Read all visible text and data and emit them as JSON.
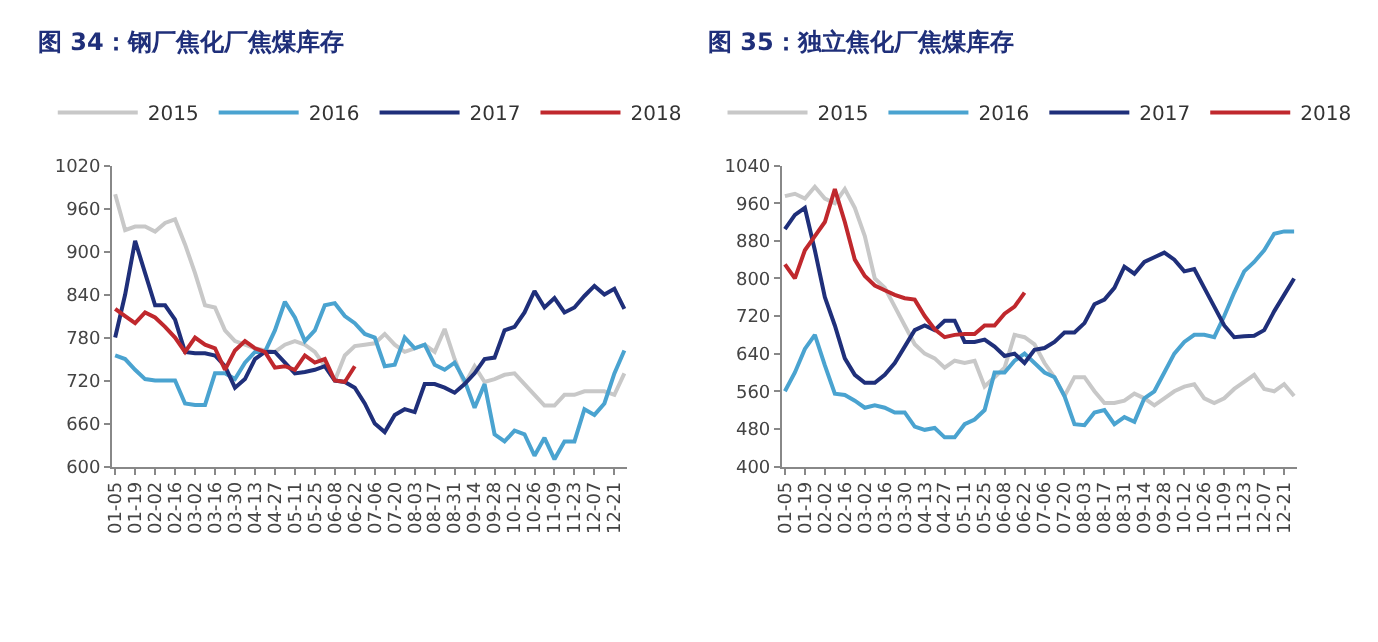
{
  "chart_data": [
    {
      "type": "line",
      "title": "图 34：钢厂焦化厂焦煤库存",
      "categories": [
        "01-05",
        null,
        "01-19",
        null,
        "02-02",
        null,
        "02-16",
        null,
        "03-02",
        null,
        "03-16",
        null,
        "03-30",
        null,
        "04-13",
        null,
        "04-27",
        null,
        "05-11",
        null,
        "05-25",
        null,
        "06-08",
        null,
        "06-22",
        null,
        "07-06",
        null,
        "07-20",
        null,
        "08-03",
        null,
        "08-17",
        null,
        "08-31",
        null,
        "09-14",
        null,
        "09-28",
        null,
        "10-12",
        null,
        "10-26",
        null,
        "11-09",
        null,
        "11-23",
        null,
        "12-07",
        null,
        "12-21",
        null
      ],
      "series": [
        {
          "name": "2015",
          "color": "#c8c8c8",
          "values": [
            980,
            930,
            935,
            935,
            928,
            940,
            945,
            910,
            870,
            825,
            822,
            790,
            775,
            770,
            765,
            762,
            760,
            770,
            775,
            770,
            760,
            740,
            720,
            755,
            768,
            770,
            772,
            785,
            770,
            760,
            765,
            770,
            760,
            792,
            750,
            715,
            740,
            718,
            722,
            728,
            730,
            715,
            700,
            685,
            685,
            700,
            700,
            705,
            705,
            705,
            700,
            730
          ]
        },
        {
          "name": "2016",
          "color": "#4aa3d0",
          "values": [
            755,
            750,
            735,
            722,
            720,
            720,
            720,
            688,
            686,
            686,
            730,
            730,
            722,
            745,
            760,
            760,
            790,
            830,
            808,
            775,
            790,
            825,
            828,
            810,
            800,
            785,
            780,
            740,
            742,
            780,
            765,
            770,
            742,
            735,
            745,
            720,
            682,
            715,
            645,
            635,
            650,
            645,
            615,
            640,
            610,
            635,
            635,
            680,
            672,
            688,
            730,
            762
          ]
        },
        {
          "name": "2017",
          "color": "#1f2f7a",
          "values": [
            780,
            840,
            915,
            870,
            825,
            825,
            805,
            760,
            758,
            758,
            755,
            740,
            710,
            722,
            750,
            760,
            760,
            745,
            730,
            732,
            735,
            740,
            720,
            718,
            710,
            688,
            660,
            648,
            672,
            680,
            676,
            715,
            715,
            710,
            703,
            715,
            730,
            750,
            752,
            790,
            795,
            815,
            845,
            822,
            835,
            815,
            822,
            838,
            852,
            840,
            848,
            820
          ]
        },
        {
          "name": "2018",
          "color": "#c0282d",
          "values": [
            820,
            810,
            800,
            815,
            808,
            795,
            780,
            760,
            780,
            770,
            765,
            735,
            762,
            775,
            765,
            760,
            738,
            740,
            735,
            755,
            745,
            750,
            720,
            718,
            740,
            null,
            null,
            null,
            null,
            null,
            null,
            null,
            null,
            null,
            null,
            null,
            null,
            null,
            null,
            null,
            null,
            null,
            null,
            null,
            null,
            null,
            null,
            null,
            null,
            null,
            null,
            null
          ]
        }
      ],
      "ylim": [
        600,
        1020
      ],
      "yticks": [
        600,
        660,
        720,
        780,
        840,
        900,
        960,
        1020
      ],
      "legend": "top",
      "marker": "none",
      "line_style": "solid"
    },
    {
      "type": "line",
      "title": "图 35：独立焦化厂焦煤库存",
      "categories": [
        "01-05",
        null,
        "01-19",
        null,
        "02-02",
        null,
        "02-16",
        null,
        "03-02",
        null,
        "03-16",
        null,
        "03-30",
        null,
        "04-13",
        null,
        "04-27",
        null,
        "05-11",
        null,
        "05-25",
        null,
        "06-08",
        null,
        "06-22",
        null,
        "07-06",
        null,
        "07-20",
        null,
        "08-03",
        null,
        "08-17",
        null,
        "08-31",
        null,
        "09-14",
        null,
        "09-28",
        null,
        "10-12",
        null,
        "10-26",
        null,
        "11-09",
        null,
        "11-23",
        null,
        "12-07",
        null,
        "12-21",
        null
      ],
      "series": [
        {
          "name": "2015",
          "color": "#c8c8c8",
          "values": [
            975,
            980,
            970,
            995,
            970,
            960,
            990,
            950,
            890,
            800,
            780,
            740,
            700,
            660,
            640,
            630,
            610,
            625,
            620,
            625,
            570,
            590,
            610,
            680,
            675,
            660,
            620,
            590,
            550,
            590,
            590,
            560,
            535,
            535,
            540,
            555,
            545,
            530,
            545,
            560,
            570,
            575,
            545,
            535,
            545,
            565,
            580,
            595,
            565,
            560,
            575,
            550
          ]
        },
        {
          "name": "2016",
          "color": "#4aa3d0",
          "values": [
            560,
            600,
            650,
            680,
            615,
            555,
            552,
            540,
            525,
            530,
            525,
            515,
            515,
            485,
            478,
            482,
            462,
            462,
            490,
            500,
            520,
            600,
            600,
            625,
            640,
            620,
            600,
            590,
            550,
            490,
            488,
            515,
            520,
            490,
            505,
            495,
            545,
            560,
            600,
            640,
            665,
            680,
            680,
            675,
            720,
            770,
            815,
            835,
            860,
            895,
            900,
            900
          ]
        },
        {
          "name": "2017",
          "color": "#1f2f7a",
          "values": [
            905,
            935,
            950,
            860,
            760,
            700,
            630,
            595,
            578,
            578,
            595,
            620,
            655,
            690,
            700,
            690,
            710,
            710,
            665,
            665,
            670,
            655,
            635,
            640,
            620,
            648,
            652,
            665,
            685,
            685,
            705,
            745,
            755,
            780,
            825,
            810,
            835,
            845,
            855,
            840,
            815,
            820,
            780,
            740,
            700,
            675,
            677,
            678,
            690,
            730,
            765,
            800
          ]
        },
        {
          "name": "2018",
          "color": "#c0282d",
          "values": [
            830,
            800,
            860,
            890,
            920,
            990,
            920,
            840,
            805,
            785,
            775,
            765,
            758,
            755,
            720,
            692,
            675,
            680,
            682,
            682,
            700,
            700,
            725,
            740,
            770,
            null,
            null,
            null,
            null,
            null,
            null,
            null,
            null,
            null,
            null,
            null,
            null,
            null,
            null,
            null,
            null,
            null,
            null,
            null,
            null,
            null,
            null,
            null,
            null,
            null,
            null,
            null
          ]
        }
      ],
      "ylim": [
        400,
        1040
      ],
      "yticks": [
        400,
        480,
        560,
        640,
        720,
        800,
        880,
        960,
        1040
      ],
      "legend": "top",
      "marker": "none",
      "line_style": "solid"
    }
  ]
}
